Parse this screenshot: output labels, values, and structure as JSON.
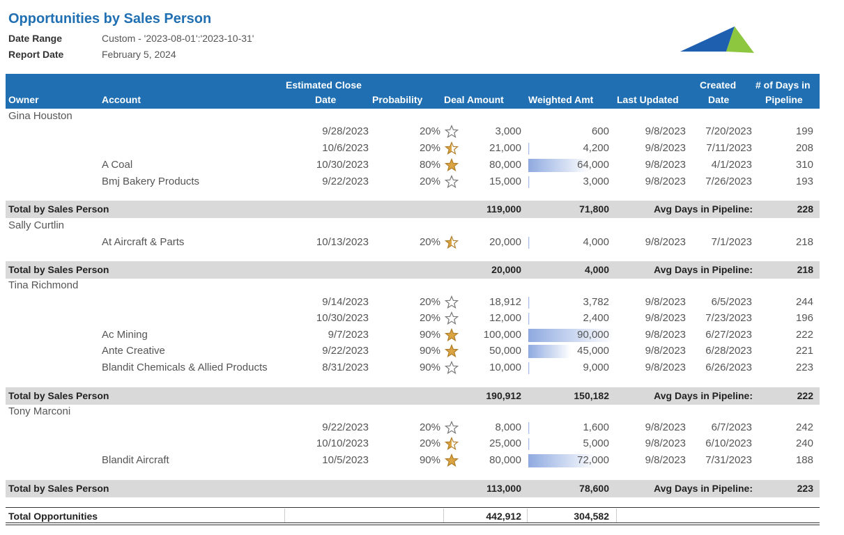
{
  "report": {
    "title": "Opportunities by Sales Person",
    "date_range_label": "Date Range",
    "date_range_value": "Custom - '2023-08-01':'2023-10-31'",
    "report_date_label": "Report Date",
    "report_date_value": "February 5, 2024"
  },
  "colors": {
    "header_bg": "#1F6FB2",
    "title": "#1F6FB2",
    "total_bg": "#D9D9D9",
    "logo_blue": "#1F5FAF",
    "logo_green": "#8DC63F",
    "star_gold": "#D9A441"
  },
  "columns": {
    "owner": "Owner",
    "account": "Account",
    "close_date_1": "Estimated Close",
    "close_date_2": "Date",
    "probability": "Probability",
    "deal_amount": "Deal Amount",
    "weighted_amt": "Weighted Amt",
    "last_updated": "Last Updated",
    "created_1": "Created",
    "created_2": "Date",
    "days_1": "# of Days in",
    "days_2": "Pipeline"
  },
  "groups": [
    {
      "owner": "Gina Houston",
      "rows": [
        {
          "account": "",
          "close": "9/28/2023",
          "prob": "20%",
          "star": "empty",
          "deal": "3,000",
          "deal_frac": 0.0,
          "weighted": "600",
          "w_frac": 0.0,
          "updated": "9/8/2023",
          "created": "7/20/2023",
          "days": "199"
        },
        {
          "account": "",
          "close": "10/6/2023",
          "prob": "20%",
          "star": "half",
          "deal": "21,000",
          "deal_frac": 0.21,
          "weighted": "4,200",
          "w_frac": 0.0,
          "updated": "9/8/2023",
          "created": "7/11/2023",
          "days": "208"
        },
        {
          "account": "A Coal",
          "close": "10/30/2023",
          "prob": "80%",
          "star": "full",
          "deal": "80,000",
          "deal_frac": 0.8,
          "weighted": "64,000",
          "w_frac": 0.71,
          "updated": "9/8/2023",
          "created": "4/1/2023",
          "days": "310"
        },
        {
          "account": "Bmj Bakery Products",
          "close": "9/22/2023",
          "prob": "20%",
          "star": "empty",
          "deal": "15,000",
          "deal_frac": 0.15,
          "weighted": "3,000",
          "w_frac": 0.0,
          "updated": "9/8/2023",
          "created": "7/26/2023",
          "days": "193"
        }
      ],
      "total": {
        "label": "Total by Sales Person",
        "deal": "119,000",
        "weighted": "71,800",
        "avg_label": "Avg Days in Pipeline:",
        "avg": "228"
      }
    },
    {
      "owner": "Sally Curtlin",
      "rows": [
        {
          "account": "At Aircraft & Parts",
          "close": "10/13/2023",
          "prob": "20%",
          "star": "half",
          "deal": "20,000",
          "deal_frac": 0.2,
          "weighted": "4,000",
          "w_frac": 0.0,
          "updated": "9/8/2023",
          "created": "7/1/2023",
          "days": "218"
        }
      ],
      "total": {
        "label": "Total by Sales Person",
        "deal": "20,000",
        "weighted": "4,000",
        "avg_label": "Avg Days in Pipeline:",
        "avg": "218"
      }
    },
    {
      "owner": "Tina Richmond",
      "rows": [
        {
          "account": "",
          "close": "9/14/2023",
          "prob": "20%",
          "star": "empty",
          "deal": "18,912",
          "deal_frac": 0.19,
          "weighted": "3,782",
          "w_frac": 0.0,
          "updated": "9/8/2023",
          "created": "6/5/2023",
          "days": "244"
        },
        {
          "account": "",
          "close": "10/30/2023",
          "prob": "20%",
          "star": "empty",
          "deal": "12,000",
          "deal_frac": 0.12,
          "weighted": "2,400",
          "w_frac": 0.0,
          "updated": "9/8/2023",
          "created": "7/23/2023",
          "days": "196"
        },
        {
          "account": "Ac Mining",
          "close": "9/7/2023",
          "prob": "90%",
          "star": "full",
          "deal": "100,000",
          "deal_frac": 1.0,
          "weighted": "90,000",
          "w_frac": 1.0,
          "updated": "9/8/2023",
          "created": "6/27/2023",
          "days": "222"
        },
        {
          "account": "Ante Creative",
          "close": "9/22/2023",
          "prob": "90%",
          "star": "full",
          "deal": "50,000",
          "deal_frac": 0.5,
          "weighted": "45,000",
          "w_frac": 0.5,
          "updated": "9/8/2023",
          "created": "6/28/2023",
          "days": "221"
        },
        {
          "account": "Blandit Chemicals & Allied Products",
          "close": "8/31/2023",
          "prob": "90%",
          "star": "empty",
          "deal": "10,000",
          "deal_frac": 0.1,
          "weighted": "9,000",
          "w_frac": 0.0,
          "updated": "9/8/2023",
          "created": "6/26/2023",
          "days": "223"
        }
      ],
      "total": {
        "label": "Total by Sales Person",
        "deal": "190,912",
        "weighted": "150,182",
        "avg_label": "Avg Days in Pipeline:",
        "avg": "222"
      }
    },
    {
      "owner": "Tony Marconi",
      "rows": [
        {
          "account": "",
          "close": "9/22/2023",
          "prob": "20%",
          "star": "empty",
          "deal": "8,000",
          "deal_frac": 0.08,
          "weighted": "1,600",
          "w_frac": 0.0,
          "updated": "9/8/2023",
          "created": "6/7/2023",
          "days": "242"
        },
        {
          "account": "",
          "close": "10/10/2023",
          "prob": "20%",
          "star": "half",
          "deal": "25,000",
          "deal_frac": 0.25,
          "weighted": "5,000",
          "w_frac": 0.0,
          "updated": "9/8/2023",
          "created": "6/10/2023",
          "days": "240"
        },
        {
          "account": "Blandit Aircraft",
          "close": "10/5/2023",
          "prob": "90%",
          "star": "full",
          "deal": "80,000",
          "deal_frac": 0.8,
          "weighted": "72,000",
          "w_frac": 0.8,
          "updated": "9/8/2023",
          "created": "7/31/2023",
          "days": "188"
        }
      ],
      "total": {
        "label": "Total by Sales Person",
        "deal": "113,000",
        "weighted": "78,600",
        "avg_label": "Avg Days in Pipeline:",
        "avg": "223"
      }
    }
  ],
  "grand_total": {
    "label": "Total Opportunities",
    "deal": "442,912",
    "weighted": "304,582"
  }
}
